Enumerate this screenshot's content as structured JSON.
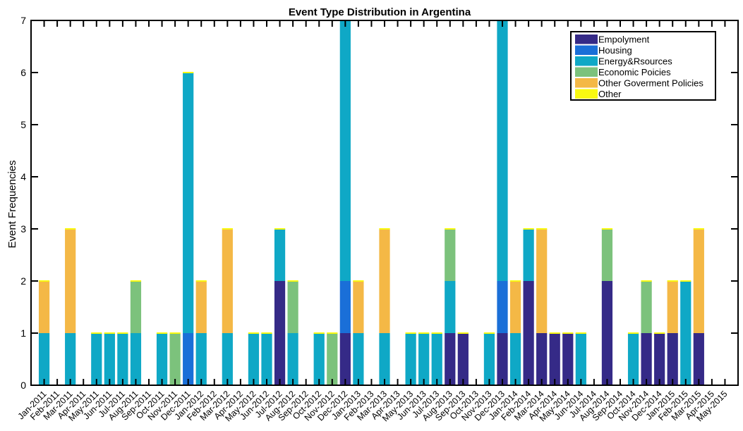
{
  "chart_data": {
    "type": "bar",
    "stacked": true,
    "title": "Event Type Distribution in Argentina",
    "xlabel": "",
    "ylabel": "Event Frequencies",
    "ylim": [
      0,
      7
    ],
    "yticks": [
      "0",
      "1",
      "2",
      "3",
      "4",
      "5",
      "6",
      "7"
    ],
    "grid": false,
    "legend_position": "top-right",
    "categories": [
      "Jan-2011",
      "Feb-2011",
      "Mar-2011",
      "Apr-2011",
      "May-2011",
      "Jun-2011",
      "Jul-2011",
      "Aug-2011",
      "Sep-2011",
      "Oct-2011",
      "Nov-2011",
      "Dec-2011",
      "Jan-2012",
      "Feb-2012",
      "Mar-2012",
      "Apr-2012",
      "May-2012",
      "Jun-2012",
      "Jul-2012",
      "Aug-2012",
      "Sep-2012",
      "Oct-2012",
      "Nov-2012",
      "Dec-2012",
      "Jan-2013",
      "Feb-2013",
      "Mar-2013",
      "Apr-2013",
      "May-2013",
      "Jun-2013",
      "Jul-2013",
      "Aug-2013",
      "Sep-2013",
      "Oct-2013",
      "Nov-2013",
      "Dec-2013",
      "Jan-2014",
      "Feb-2014",
      "Mar-2014",
      "Apr-2014",
      "May-2014",
      "Jun-2014",
      "Jul-2014",
      "Aug-2014",
      "Sep-2014",
      "Oct-2014",
      "Nov-2014",
      "Dec-2014",
      "Jan-2015",
      "Feb-2015",
      "Mar-2015",
      "Apr-2015",
      "May-2015"
    ],
    "series": [
      {
        "name": "Empolyment",
        "color": "#352a87",
        "values": [
          0,
          0,
          0,
          0,
          0,
          0,
          0,
          0,
          0,
          0,
          0,
          0,
          0,
          0,
          0,
          0,
          0,
          0,
          2,
          0,
          0,
          0,
          0,
          1,
          0,
          0,
          0,
          0,
          0,
          0,
          0,
          1,
          1,
          0,
          0,
          1,
          0,
          2,
          1,
          1,
          1,
          0,
          0,
          2,
          0,
          0,
          1,
          1,
          1,
          0,
          1,
          0,
          0
        ]
      },
      {
        "name": "Housing",
        "color": "#1a6fd8",
        "values": [
          0,
          0,
          0,
          0,
          0,
          0,
          0,
          0,
          0,
          0,
          0,
          1,
          0,
          0,
          0,
          0,
          0,
          0,
          0,
          0,
          0,
          0,
          0,
          1,
          0,
          0,
          0,
          0,
          0,
          0,
          0,
          0,
          0,
          0,
          0,
          1,
          0,
          0,
          0,
          0,
          0,
          0,
          0,
          0,
          0,
          0,
          0,
          0,
          0,
          0,
          0,
          0,
          0
        ]
      },
      {
        "name": "Energy&Rsources",
        "color": "#0fa8c6",
        "values": [
          1,
          0,
          1,
          0,
          1,
          1,
          1,
          1,
          0,
          1,
          0,
          5,
          1,
          0,
          1,
          0,
          1,
          1,
          1,
          1,
          0,
          1,
          0,
          5,
          1,
          0,
          1,
          0,
          1,
          1,
          1,
          1,
          0,
          0,
          1,
          5,
          1,
          1,
          0,
          0,
          0,
          1,
          0,
          0,
          0,
          1,
          0,
          0,
          0,
          2,
          0,
          0,
          0
        ]
      },
      {
        "name": "Economic Poicies",
        "color": "#7cc27c",
        "values": [
          0,
          0,
          0,
          0,
          0,
          0,
          0,
          1,
          0,
          0,
          1,
          0,
          0,
          0,
          0,
          0,
          0,
          0,
          0,
          1,
          0,
          0,
          1,
          0,
          0,
          0,
          0,
          0,
          0,
          0,
          0,
          1,
          0,
          0,
          0,
          0,
          0,
          0,
          0,
          0,
          0,
          0,
          0,
          1,
          0,
          0,
          1,
          0,
          0,
          0,
          0,
          0,
          0
        ]
      },
      {
        "name": "Other Goverment Policies",
        "color": "#f4b846",
        "values": [
          1,
          0,
          2,
          0,
          0,
          0,
          0,
          0,
          0,
          0,
          0,
          0,
          1,
          0,
          2,
          0,
          0,
          0,
          0,
          0,
          0,
          0,
          0,
          0,
          1,
          0,
          2,
          0,
          0,
          0,
          0,
          0,
          0,
          0,
          0,
          0,
          1,
          0,
          2,
          0,
          0,
          0,
          0,
          0,
          0,
          0,
          0,
          0,
          1,
          0,
          2,
          0,
          0
        ]
      },
      {
        "name": "Other",
        "color": "#f9f911",
        "values": [
          0,
          0,
          0,
          0,
          0,
          0,
          0,
          0,
          0,
          0,
          0,
          0,
          0,
          0,
          0,
          0,
          0,
          0,
          0,
          0,
          0,
          0,
          0,
          0,
          0,
          0,
          0,
          0,
          0,
          0,
          0,
          0,
          0,
          0,
          0,
          0,
          0,
          0,
          0,
          0,
          0,
          0,
          0,
          0,
          0,
          0,
          0,
          0,
          0,
          0,
          0,
          0,
          0
        ]
      }
    ]
  }
}
